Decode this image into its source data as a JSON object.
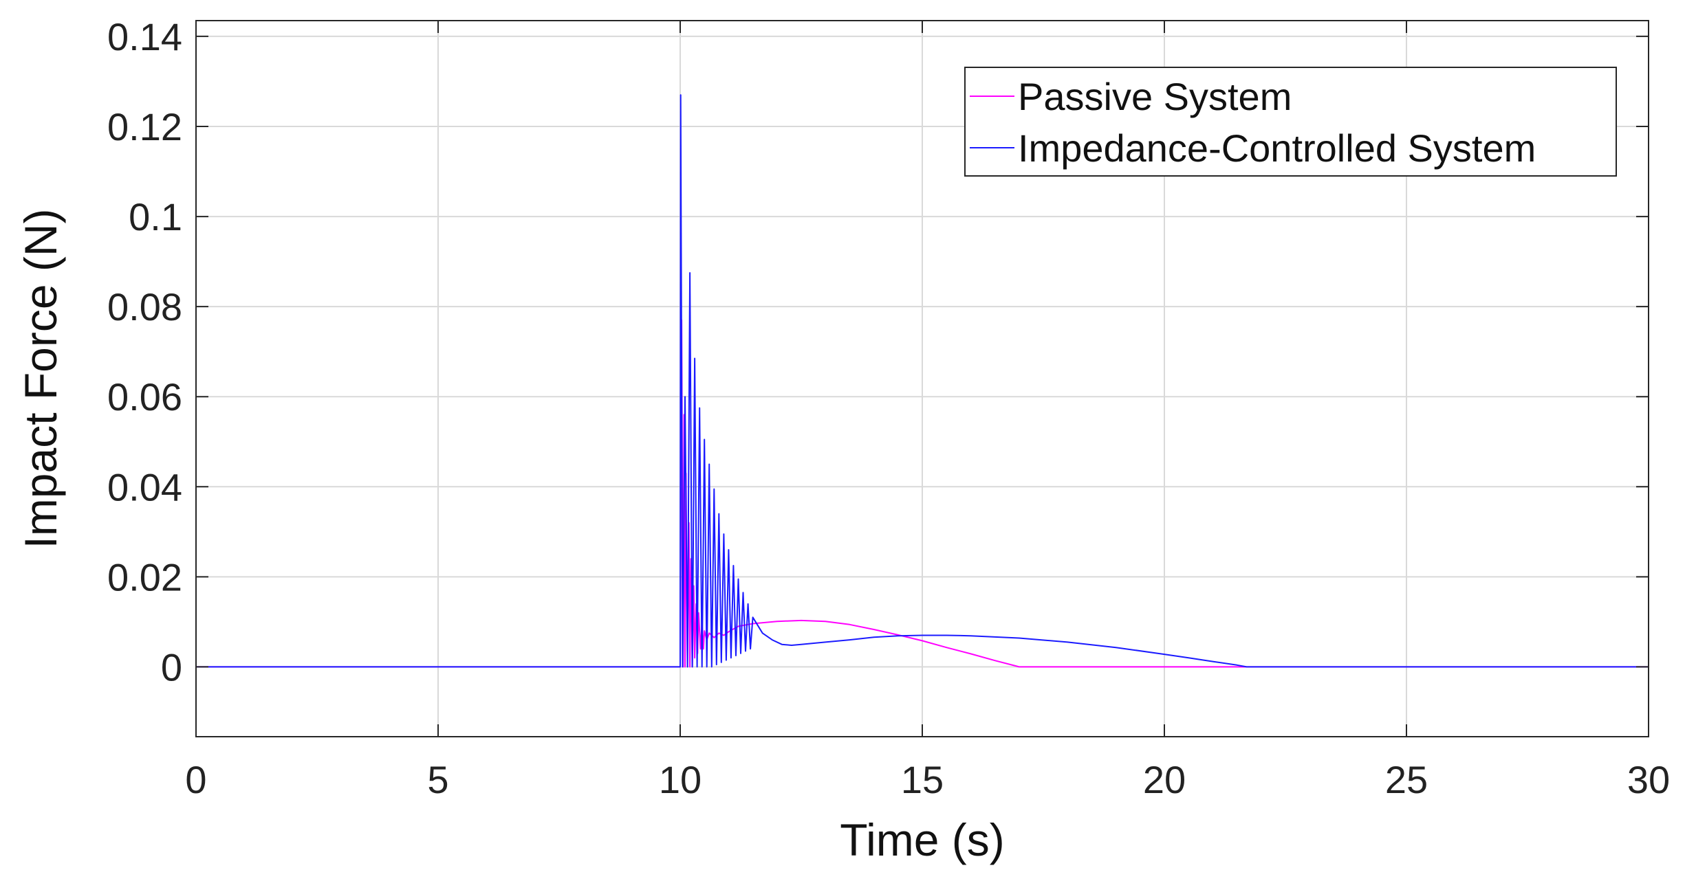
{
  "chart_data": {
    "type": "line",
    "title": "",
    "xlabel": "Time (s)",
    "ylabel": "Impact Force (N)",
    "xlim": [
      0,
      30
    ],
    "ylim": [
      -0.0155,
      0.1435
    ],
    "grid": true,
    "legend_position": "top-right",
    "xticks": [
      0,
      5,
      10,
      15,
      20,
      25,
      30
    ],
    "xtick_labels": [
      "0",
      "5",
      "10",
      "15",
      "20",
      "25",
      "30"
    ],
    "yticks": [
      0,
      0.02,
      0.04,
      0.06,
      0.08,
      0.1,
      0.12,
      0.14
    ],
    "ytick_labels": [
      "0",
      "0.02",
      "0.04",
      "0.06",
      "0.08",
      "0.1",
      "0.12",
      "0.14"
    ],
    "series": [
      {
        "name": "Passive System",
        "color": "#ff00ff",
        "x": [
          0,
          10.0,
          10.03,
          10.06,
          10.08,
          10.1,
          10.12,
          10.15,
          10.18,
          10.2,
          10.22,
          10.25,
          10.28,
          10.3,
          10.33,
          10.36,
          10.38,
          10.42,
          10.45,
          10.48,
          10.5,
          10.55,
          10.6,
          10.7,
          10.8,
          10.9,
          11.0,
          11.2,
          11.5,
          12.0,
          12.5,
          13.0,
          13.5,
          14.0,
          14.5,
          15.0,
          15.5,
          16.0,
          16.5,
          16.9,
          17.0,
          22.0,
          30
        ],
        "y": [
          0,
          0,
          0.077,
          0,
          0.056,
          0,
          0.043,
          0,
          0.032,
          0,
          0.024,
          0,
          0.018,
          0.002,
          0.014,
          0.003,
          0.012,
          0.004,
          0.01,
          0.004,
          0.008,
          0.006,
          0.0075,
          0.0065,
          0.0075,
          0.007,
          0.0078,
          0.009,
          0.0096,
          0.0101,
          0.0103,
          0.0101,
          0.0094,
          0.0083,
          0.0071,
          0.0058,
          0.0043,
          0.0029,
          0.0014,
          0.0003,
          0,
          0,
          0
        ]
      },
      {
        "name": "Impedance-Controlled System",
        "color": "#1a1aff",
        "x": [
          0,
          10.0,
          10.01,
          10.05,
          10.1,
          10.15,
          10.2,
          10.25,
          10.3,
          10.35,
          10.4,
          10.45,
          10.5,
          10.55,
          10.6,
          10.65,
          10.7,
          10.75,
          10.8,
          10.85,
          10.9,
          10.95,
          11.0,
          11.05,
          11.1,
          11.15,
          11.2,
          11.25,
          11.3,
          11.35,
          11.4,
          11.45,
          11.5,
          11.7,
          11.9,
          12.1,
          12.3,
          12.5,
          13.0,
          13.5,
          14.0,
          14.5,
          15.0,
          15.5,
          16.0,
          17.0,
          18.0,
          19.0,
          20.0,
          20.5,
          21.0,
          21.5,
          21.7,
          22.0,
          30
        ],
        "y": [
          0,
          0,
          0.127,
          0,
          0.06,
          0,
          0.0875,
          0,
          0.0685,
          0,
          0.0575,
          0,
          0.0505,
          0,
          0.045,
          0,
          0.0395,
          0.0005,
          0.034,
          0.001,
          0.0295,
          0.0015,
          0.026,
          0.002,
          0.0225,
          0.0025,
          0.0195,
          0.003,
          0.0165,
          0.0035,
          0.014,
          0.004,
          0.011,
          0.0075,
          0.006,
          0.005,
          0.0048,
          0.005,
          0.0055,
          0.006,
          0.0066,
          0.0069,
          0.007,
          0.007,
          0.0069,
          0.0064,
          0.0055,
          0.0043,
          0.0028,
          0.002,
          0.0012,
          0.0004,
          0,
          0,
          0
        ]
      }
    ]
  }
}
